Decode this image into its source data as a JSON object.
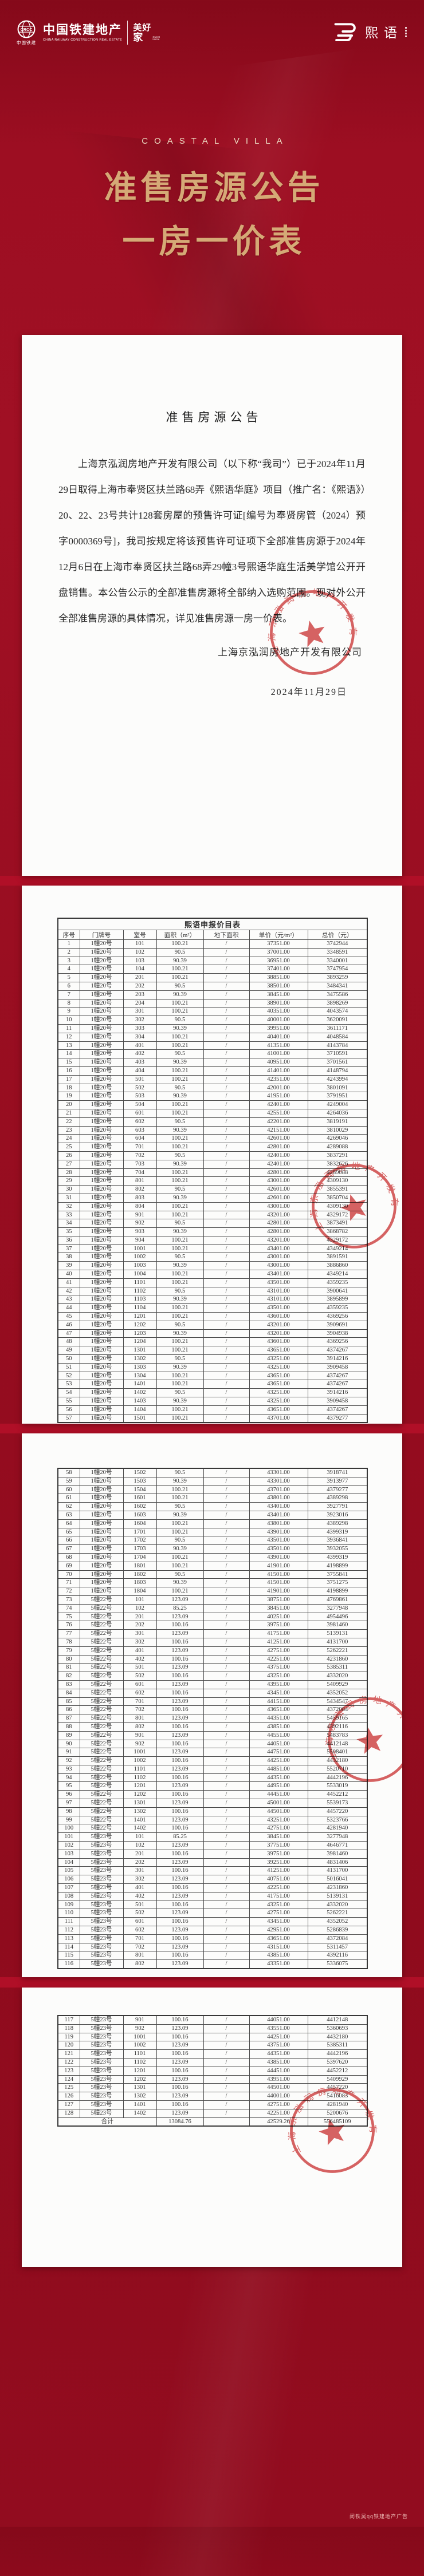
{
  "brand": {
    "crcc_emblem_text": "CRCC",
    "crcc_emblem_cn": "中国铁建",
    "crcc_name": "中国铁建地产",
    "crcc_name_en": "CHINA RAILWAY CONSTRUCTION REAL ESTATE",
    "sweet_home_l1": "美好",
    "sweet_home_l2": "家",
    "sweet_home_en": "Sweet Home",
    "project_name": "熙语"
  },
  "hero": {
    "subtitle": "COASTAL VILLA",
    "title_line1": "准售房源公告",
    "title_line2": "一房一价表"
  },
  "announcement": {
    "title": "准售房源公告",
    "body": "上海京泓润房地产开发有限公司（以下称“我司”）已于2024年11月29日取得上海市奉贤区扶兰路68弄《熙语华庭》项目（推广名：《熙语》）20、22、23号共计128套房屋的预售许可证[编号为奉贤房管（2024）预字0000369号]，我司按规定将该预售许可证项下全部准售房源于2024年12月6日在上海市奉贤区扶兰路68弄29幢3号熙语华庭生活美学馆公开开盘销售。本公告公示的全部准售房源将全部纳入选购范围。现对外公开全部准售房源的具体情况，详见准售房源一房一价表。",
    "company": "上海京泓润房地产开发有限公司",
    "date": "2024年11月29日"
  },
  "stamp": {
    "company": "上海京泓润房地产开发有限公司"
  },
  "price_table": {
    "title": "熙语申报价目表",
    "columns": [
      "序号",
      "门牌号",
      "室号",
      "面积（m²）",
      "地下面积",
      "单价（元/m²）",
      "总价（元）"
    ],
    "rows": [
      [
        "1",
        "1幢20号",
        "101",
        "100.21",
        "/",
        "37351.00",
        "3742944"
      ],
      [
        "2",
        "1幢20号",
        "102",
        "90.5",
        "/",
        "37001.00",
        "3348591"
      ],
      [
        "3",
        "1幢20号",
        "103",
        "90.39",
        "/",
        "36951.00",
        "3340001"
      ],
      [
        "4",
        "1幢20号",
        "104",
        "100.21",
        "/",
        "37401.00",
        "3747954"
      ],
      [
        "5",
        "1幢20号",
        "201",
        "100.21",
        "/",
        "38851.00",
        "3893259"
      ],
      [
        "6",
        "1幢20号",
        "202",
        "90.5",
        "/",
        "38501.00",
        "3484341"
      ],
      [
        "7",
        "1幢20号",
        "203",
        "90.39",
        "/",
        "38451.00",
        "3475586"
      ],
      [
        "8",
        "1幢20号",
        "204",
        "100.21",
        "/",
        "38901.00",
        "3898269"
      ],
      [
        "9",
        "1幢20号",
        "301",
        "100.21",
        "/",
        "40351.00",
        "4043574"
      ],
      [
        "10",
        "1幢20号",
        "302",
        "90.5",
        "/",
        "40001.00",
        "3620091"
      ],
      [
        "11",
        "1幢20号",
        "303",
        "90.39",
        "/",
        "39951.00",
        "3611171"
      ],
      [
        "12",
        "1幢20号",
        "304",
        "100.21",
        "/",
        "40401.00",
        "4048584"
      ],
      [
        "13",
        "1幢20号",
        "401",
        "100.21",
        "/",
        "41351.00",
        "4143784"
      ],
      [
        "14",
        "1幢20号",
        "402",
        "90.5",
        "/",
        "41001.00",
        "3710591"
      ],
      [
        "15",
        "1幢20号",
        "403",
        "90.39",
        "/",
        "40951.00",
        "3701561"
      ],
      [
        "16",
        "1幢20号",
        "404",
        "100.21",
        "/",
        "41401.00",
        "4148794"
      ],
      [
        "17",
        "1幢20号",
        "501",
        "100.21",
        "/",
        "42351.00",
        "4243994"
      ],
      [
        "18",
        "1幢20号",
        "502",
        "90.5",
        "/",
        "42001.00",
        "3801091"
      ],
      [
        "19",
        "1幢20号",
        "503",
        "90.39",
        "/",
        "41951.00",
        "3791951"
      ],
      [
        "20",
        "1幢20号",
        "504",
        "100.21",
        "/",
        "42401.00",
        "4249004"
      ],
      [
        "21",
        "1幢20号",
        "601",
        "100.21",
        "/",
        "42551.00",
        "4264036"
      ],
      [
        "22",
        "1幢20号",
        "602",
        "90.5",
        "/",
        "42201.00",
        "3819191"
      ],
      [
        "23",
        "1幢20号",
        "603",
        "90.39",
        "/",
        "42151.00",
        "3810029"
      ],
      [
        "24",
        "1幢20号",
        "604",
        "100.21",
        "/",
        "42601.00",
        "4269046"
      ],
      [
        "25",
        "1幢20号",
        "701",
        "100.21",
        "/",
        "42801.00",
        "4289088"
      ],
      [
        "26",
        "1幢20号",
        "702",
        "90.5",
        "/",
        "42401.00",
        "3837291"
      ],
      [
        "27",
        "1幢20号",
        "703",
        "90.39",
        "/",
        "42401.00",
        "3832626"
      ],
      [
        "28",
        "1幢20号",
        "704",
        "100.21",
        "/",
        "42801.00",
        "4289088"
      ],
      [
        "29",
        "1幢20号",
        "801",
        "100.21",
        "/",
        "43001.00",
        "4309130"
      ],
      [
        "30",
        "1幢20号",
        "802",
        "90.5",
        "/",
        "42601.00",
        "3855391"
      ],
      [
        "31",
        "1幢20号",
        "803",
        "90.39",
        "/",
        "42601.00",
        "3850704"
      ],
      [
        "32",
        "1幢20号",
        "804",
        "100.21",
        "/",
        "43001.00",
        "4309130"
      ],
      [
        "33",
        "1幢20号",
        "901",
        "100.21",
        "/",
        "43201.00",
        "4329172"
      ],
      [
        "34",
        "1幢20号",
        "902",
        "90.5",
        "/",
        "42801.00",
        "3873491"
      ],
      [
        "35",
        "1幢20号",
        "903",
        "90.39",
        "/",
        "42801.00",
        "3868782"
      ],
      [
        "36",
        "1幢20号",
        "904",
        "100.21",
        "/",
        "43201.00",
        "4329172"
      ],
      [
        "37",
        "1幢20号",
        "1001",
        "100.21",
        "/",
        "43401.00",
        "4349214"
      ],
      [
        "38",
        "1幢20号",
        "1002",
        "90.5",
        "/",
        "43001.00",
        "3891591"
      ],
      [
        "39",
        "1幢20号",
        "1003",
        "90.39",
        "/",
        "43001.00",
        "3886860"
      ],
      [
        "40",
        "1幢20号",
        "1004",
        "100.21",
        "/",
        "43401.00",
        "4349214"
      ],
      [
        "41",
        "1幢20号",
        "1101",
        "100.21",
        "/",
        "43501.00",
        "4359235"
      ],
      [
        "42",
        "1幢20号",
        "1102",
        "90.5",
        "/",
        "43101.00",
        "3900641"
      ],
      [
        "43",
        "1幢20号",
        "1103",
        "90.39",
        "/",
        "43101.00",
        "3895899"
      ],
      [
        "44",
        "1幢20号",
        "1104",
        "100.21",
        "/",
        "43501.00",
        "4359235"
      ],
      [
        "45",
        "1幢20号",
        "1201",
        "100.21",
        "/",
        "43601.00",
        "4369256"
      ],
      [
        "46",
        "1幢20号",
        "1202",
        "90.5",
        "/",
        "43201.00",
        "3909691"
      ],
      [
        "47",
        "1幢20号",
        "1203",
        "90.39",
        "/",
        "43201.00",
        "3904938"
      ],
      [
        "48",
        "1幢20号",
        "1204",
        "100.21",
        "/",
        "43601.00",
        "4369256"
      ],
      [
        "49",
        "1幢20号",
        "1301",
        "100.21",
        "/",
        "43651.00",
        "4374267"
      ],
      [
        "50",
        "1幢20号",
        "1302",
        "90.5",
        "/",
        "43251.00",
        "3914216"
      ],
      [
        "51",
        "1幢20号",
        "1303",
        "90.39",
        "/",
        "43251.00",
        "3909458"
      ],
      [
        "52",
        "1幢20号",
        "1304",
        "100.21",
        "/",
        "43651.00",
        "4374267"
      ],
      [
        "53",
        "1幢20号",
        "1401",
        "100.21",
        "/",
        "43651.00",
        "4374267"
      ],
      [
        "54",
        "1幢20号",
        "1402",
        "90.5",
        "/",
        "43251.00",
        "3914216"
      ],
      [
        "55",
        "1幢20号",
        "1403",
        "90.39",
        "/",
        "43251.00",
        "3909458"
      ],
      [
        "56",
        "1幢20号",
        "1404",
        "100.21",
        "/",
        "43651.00",
        "4374267"
      ],
      [
        "57",
        "1幢20号",
        "1501",
        "100.21",
        "/",
        "43701.00",
        "4379277"
      ],
      [
        "58",
        "1幢20号",
        "1502",
        "90.5",
        "/",
        "43301.00",
        "3918741"
      ],
      [
        "59",
        "1幢20号",
        "1503",
        "90.39",
        "/",
        "43301.00",
        "3913977"
      ],
      [
        "60",
        "1幢20号",
        "1504",
        "100.21",
        "/",
        "43701.00",
        "4379277"
      ],
      [
        "61",
        "1幢20号",
        "1601",
        "100.21",
        "/",
        "43801.00",
        "4389298"
      ],
      [
        "62",
        "1幢20号",
        "1602",
        "90.5",
        "/",
        "43401.00",
        "3927791"
      ],
      [
        "63",
        "1幢20号",
        "1603",
        "90.39",
        "/",
        "43401.00",
        "3923016"
      ],
      [
        "64",
        "1幢20号",
        "1604",
        "100.21",
        "/",
        "43801.00",
        "4389298"
      ],
      [
        "65",
        "1幢20号",
        "1701",
        "100.21",
        "/",
        "43901.00",
        "4399319"
      ],
      [
        "66",
        "1幢20号",
        "1702",
        "90.5",
        "/",
        "43501.00",
        "3936841"
      ],
      [
        "67",
        "1幢20号",
        "1703",
        "90.39",
        "/",
        "43501.00",
        "3932055"
      ],
      [
        "68",
        "1幢20号",
        "1704",
        "100.21",
        "/",
        "43901.00",
        "4399319"
      ],
      [
        "69",
        "1幢20号",
        "1801",
        "100.21",
        "/",
        "41901.00",
        "4198899"
      ],
      [
        "70",
        "1幢20号",
        "1802",
        "90.5",
        "/",
        "41501.00",
        "3755841"
      ],
      [
        "71",
        "1幢20号",
        "1803",
        "90.39",
        "/",
        "41501.00",
        "3751275"
      ],
      [
        "72",
        "1幢20号",
        "1804",
        "100.21",
        "/",
        "41901.00",
        "4198899"
      ],
      [
        "73",
        "5幢22号",
        "101",
        "123.09",
        "/",
        "38751.00",
        "4769861"
      ],
      [
        "74",
        "5幢22号",
        "102",
        "85.25",
        "/",
        "38451.00",
        "3277948"
      ],
      [
        "75",
        "5幢22号",
        "201",
        "123.09",
        "/",
        "40251.00",
        "4954496"
      ],
      [
        "76",
        "5幢22号",
        "202",
        "100.16",
        "/",
        "39751.00",
        "3981460"
      ],
      [
        "77",
        "5幢22号",
        "301",
        "123.09",
        "/",
        "41751.00",
        "5139131"
      ],
      [
        "78",
        "5幢22号",
        "302",
        "100.16",
        "/",
        "41251.00",
        "4131700"
      ],
      [
        "79",
        "5幢22号",
        "401",
        "123.09",
        "/",
        "42751.00",
        "5262221"
      ],
      [
        "80",
        "5幢22号",
        "402",
        "100.16",
        "/",
        "42251.00",
        "4231860"
      ],
      [
        "81",
        "5幢22号",
        "501",
        "123.09",
        "/",
        "43751.00",
        "5385311"
      ],
      [
        "82",
        "5幢22号",
        "502",
        "100.16",
        "/",
        "43251.00",
        "4332020"
      ],
      [
        "83",
        "5幢22号",
        "601",
        "123.09",
        "/",
        "43951.00",
        "5409929"
      ],
      [
        "84",
        "5幢22号",
        "602",
        "100.16",
        "/",
        "43451.00",
        "4352052"
      ],
      [
        "85",
        "5幢22号",
        "701",
        "123.09",
        "/",
        "44151.00",
        "5434547"
      ],
      [
        "86",
        "5幢22号",
        "702",
        "100.16",
        "/",
        "43651.00",
        "4372084"
      ],
      [
        "87",
        "5幢22号",
        "801",
        "123.09",
        "/",
        "44351.00",
        "5459165"
      ],
      [
        "88",
        "5幢22号",
        "802",
        "100.16",
        "/",
        "43851.00",
        "4392116"
      ],
      [
        "89",
        "5幢22号",
        "901",
        "123.09",
        "/",
        "44551.00",
        "5483783"
      ],
      [
        "90",
        "5幢22号",
        "902",
        "100.16",
        "/",
        "44051.00",
        "4412148"
      ],
      [
        "91",
        "5幢22号",
        "1001",
        "123.09",
        "/",
        "44751.00",
        "5508401"
      ],
      [
        "92",
        "5幢22号",
        "1002",
        "100.16",
        "/",
        "44251.00",
        "4432180"
      ],
      [
        "93",
        "5幢22号",
        "1101",
        "123.09",
        "/",
        "44851.00",
        "5520710"
      ],
      [
        "94",
        "5幢22号",
        "1102",
        "100.16",
        "/",
        "44351.00",
        "4442196"
      ],
      [
        "95",
        "5幢22号",
        "1201",
        "123.09",
        "/",
        "44951.00",
        "5533019"
      ],
      [
        "96",
        "5幢22号",
        "1202",
        "100.16",
        "/",
        "44451.00",
        "4452212"
      ],
      [
        "97",
        "5幢22号",
        "1301",
        "123.09",
        "/",
        "45001.00",
        "5539173"
      ],
      [
        "98",
        "5幢22号",
        "1302",
        "100.16",
        "/",
        "44501.00",
        "4457220"
      ],
      [
        "99",
        "5幢22号",
        "1401",
        "123.09",
        "/",
        "43251.00",
        "5323766"
      ],
      [
        "100",
        "5幢22号",
        "1402",
        "100.16",
        "/",
        "42751.00",
        "4281940"
      ],
      [
        "101",
        "5幢23号",
        "101",
        "85.25",
        "/",
        "38451.00",
        "3277948"
      ],
      [
        "102",
        "5幢23号",
        "102",
        "123.09",
        "/",
        "37751.00",
        "4646771"
      ],
      [
        "103",
        "5幢23号",
        "201",
        "100.16",
        "/",
        "39751.00",
        "3981460"
      ],
      [
        "104",
        "5幢23号",
        "202",
        "123.09",
        "/",
        "39251.00",
        "4831406"
      ],
      [
        "105",
        "5幢23号",
        "301",
        "100.16",
        "/",
        "41251.00",
        "4131700"
      ],
      [
        "106",
        "5幢23号",
        "302",
        "123.09",
        "/",
        "40751.00",
        "5016041"
      ],
      [
        "107",
        "5幢23号",
        "401",
        "100.16",
        "/",
        "42251.00",
        "4231860"
      ],
      [
        "108",
        "5幢23号",
        "402",
        "123.09",
        "/",
        "41751.00",
        "5139131"
      ],
      [
        "109",
        "5幢23号",
        "501",
        "100.16",
        "/",
        "43251.00",
        "4332020"
      ],
      [
        "110",
        "5幢23号",
        "502",
        "123.09",
        "/",
        "42751.00",
        "5262221"
      ],
      [
        "111",
        "5幢23号",
        "601",
        "100.16",
        "/",
        "43451.00",
        "4352052"
      ],
      [
        "112",
        "5幢23号",
        "602",
        "123.09",
        "/",
        "42951.00",
        "5286839"
      ],
      [
        "113",
        "5幢23号",
        "701",
        "100.16",
        "/",
        "43651.00",
        "4372084"
      ],
      [
        "114",
        "5幢23号",
        "702",
        "123.09",
        "/",
        "43151.00",
        "5311457"
      ],
      [
        "115",
        "5幢23号",
        "801",
        "100.16",
        "/",
        "43851.00",
        "4392116"
      ],
      [
        "116",
        "5幢23号",
        "802",
        "123.09",
        "/",
        "43351.00",
        "5336075"
      ],
      [
        "117",
        "5幢23号",
        "901",
        "100.16",
        "/",
        "44051.00",
        "4412148"
      ],
      [
        "118",
        "5幢23号",
        "902",
        "123.09",
        "/",
        "43551.00",
        "5360693"
      ],
      [
        "119",
        "5幢23号",
        "1001",
        "100.16",
        "/",
        "44251.00",
        "4432180"
      ],
      [
        "120",
        "5幢23号",
        "1002",
        "123.09",
        "/",
        "43751.00",
        "5385311"
      ],
      [
        "121",
        "5幢23号",
        "1101",
        "100.16",
        "/",
        "44351.00",
        "4442196"
      ],
      [
        "122",
        "5幢23号",
        "1102",
        "123.09",
        "/",
        "43851.00",
        "5397620"
      ],
      [
        "123",
        "5幢23号",
        "1201",
        "100.16",
        "/",
        "44451.00",
        "4452212"
      ],
      [
        "124",
        "5幢23号",
        "1202",
        "123.09",
        "/",
        "43951.00",
        "5409929"
      ],
      [
        "125",
        "5幢23号",
        "1301",
        "100.16",
        "/",
        "44501.00",
        "4457220"
      ],
      [
        "126",
        "5幢23号",
        "1302",
        "123.09",
        "/",
        "44001.00",
        "5416083"
      ],
      [
        "127",
        "5幢23号",
        "1401",
        "100.16",
        "/",
        "42751.00",
        "4281940"
      ],
      [
        "128",
        "5幢23号",
        "1402",
        "123.09",
        "/",
        "42251.00",
        "5200676"
      ]
    ],
    "total": {
      "label": "合计",
      "area": "13084.76",
      "underground": "",
      "unit_price": "42529.26",
      "total_price": "556485109"
    }
  },
  "footer": {
    "watermark": "闵铁昊qq铁建地产广告"
  }
}
